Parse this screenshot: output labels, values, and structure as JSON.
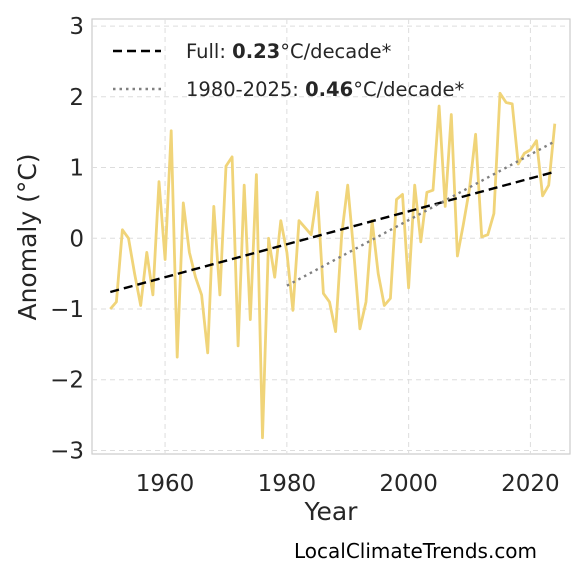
{
  "chart_data": {
    "type": "line",
    "title": "",
    "xlabel": "Year",
    "ylabel": "Anomaly (°C)",
    "xlim": [
      1948,
      2026.5
    ],
    "ylim": [
      -3.05,
      3.1
    ],
    "xticks": [
      1960,
      1980,
      2000,
      2020
    ],
    "yticks": [
      -3,
      -2,
      -1,
      0,
      1,
      2,
      3
    ],
    "xtick_labels": [
      "1960",
      "1980",
      "2000",
      "2020"
    ],
    "ytick_labels": [
      "−3",
      "−2",
      "−1",
      "0",
      "1",
      "2",
      "3"
    ],
    "grid": true,
    "legend_position": "top-left",
    "series": [
      {
        "color": "#f0d479",
        "x": [
          1951,
          1952,
          1953,
          1954,
          1955,
          1956,
          1957,
          1958,
          1959,
          1960,
          1961,
          1962,
          1963,
          1964,
          1965,
          1966,
          1967,
          1968,
          1969,
          1970,
          1971,
          1972,
          1973,
          1974,
          1975,
          1976,
          1977,
          1978,
          1979,
          1980,
          1981,
          1982,
          1983,
          1984,
          1985,
          1986,
          1987,
          1988,
          1989,
          1990,
          1991,
          1992,
          1993,
          1994,
          1995,
          1996,
          1997,
          1998,
          1999,
          2000,
          2001,
          2002,
          2003,
          2004,
          2005,
          2006,
          2007,
          2008,
          2009,
          2010,
          2011,
          2012,
          2013,
          2014,
          2015,
          2016,
          2017,
          2018,
          2019,
          2020,
          2021,
          2022,
          2023,
          2024
        ],
        "y": [
          -1.0,
          -0.9,
          0.12,
          0.0,
          -0.5,
          -0.95,
          -0.2,
          -0.8,
          0.8,
          -0.3,
          1.52,
          -1.68,
          0.5,
          -0.2,
          -0.55,
          -0.8,
          -1.62,
          0.45,
          -0.8,
          1.02,
          1.15,
          -1.52,
          0.75,
          -1.15,
          0.9,
          -2.82,
          0.0,
          -0.55,
          0.25,
          -0.2,
          -1.02,
          0.25,
          0.15,
          0.05,
          0.65,
          -0.78,
          -0.9,
          -1.32,
          0.05,
          0.75,
          -0.2,
          -1.28,
          -0.9,
          0.25,
          -0.5,
          -0.95,
          -0.85,
          0.55,
          0.62,
          -0.7,
          0.75,
          -0.05,
          0.65,
          0.68,
          1.87,
          0.45,
          1.75,
          -0.25,
          0.2,
          0.7,
          1.47,
          0.02,
          0.05,
          0.35,
          2.05,
          1.92,
          1.9,
          1.05,
          1.2,
          1.25,
          1.38,
          0.6,
          0.75,
          1.62
        ]
      },
      {
        "name": "Full: 0.23°C/decade*",
        "style": "dashed",
        "color": "#000000",
        "x": [
          1951,
          2024
        ],
        "y": [
          -0.76,
          0.94
        ]
      },
      {
        "name": "1980-2025: 0.46°C/decade*",
        "style": "dotted",
        "color": "#808080",
        "x": [
          1980,
          2024
        ],
        "y": [
          -0.67,
          1.37
        ]
      }
    ],
    "legend": [
      {
        "prefix": "Full: ",
        "value": "0.23",
        "suffix": "°C/decade*"
      },
      {
        "prefix": "1980-2025: ",
        "value": "0.46",
        "suffix": "°C/decade*"
      }
    ]
  },
  "credit": "LocalClimateTrends.com"
}
